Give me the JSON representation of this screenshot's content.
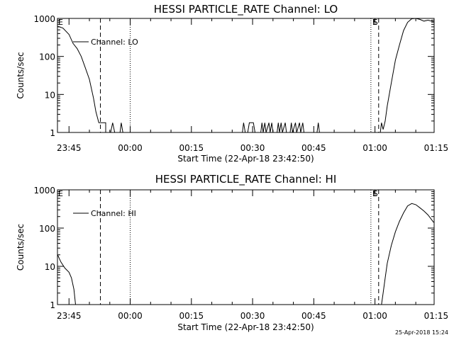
{
  "footer_timestamp": "25-Apr-2018 15:24",
  "chart_data": [
    {
      "type": "line",
      "title": "HESSI PARTICLE_RATE Channel: LO",
      "xlabel": "Start Time (22-Apr-18 23:42:50)",
      "ylabel": "Counts/sec",
      "yscale": "log",
      "ylim": [
        1,
        1000
      ],
      "xlim_minutes": [
        -2.83,
        89.5
      ],
      "x_ticks": [
        {
          "label": "23:45",
          "min": 0
        },
        {
          "label": "00:00",
          "min": 15
        },
        {
          "label": "00:15",
          "min": 30
        },
        {
          "label": "00:30",
          "min": 45
        },
        {
          "label": "00:45",
          "min": 60
        },
        {
          "label": "01:00",
          "min": 75
        },
        {
          "label": "01:15",
          "min": 90
        }
      ],
      "y_ticks": [
        {
          "label": "1",
          "v": 1
        },
        {
          "label": "10",
          "v": 10
        },
        {
          "label": "100",
          "v": 100
        },
        {
          "label": "1000",
          "v": 1000
        }
      ],
      "legend": "top-left",
      "series": [
        {
          "name": "Channel: LO",
          "points": [
            [
              -2.8,
              620
            ],
            [
              -1.5,
              560
            ],
            [
              0,
              380
            ],
            [
              1,
              220
            ],
            [
              2,
              160
            ],
            [
              3,
              100
            ],
            [
              4,
              50
            ],
            [
              5,
              25
            ],
            [
              6,
              8
            ],
            [
              6.6,
              3.5
            ],
            [
              7.3,
              1.8
            ],
            [
              8.2,
              1.8
            ],
            [
              9,
              1.8
            ],
            [
              9,
              1
            ],
            [
              10.2,
              1
            ],
            [
              10.7,
              1.8
            ],
            [
              11.2,
              1
            ],
            [
              12.5,
              1
            ],
            [
              12.8,
              1.8
            ],
            [
              13.2,
              1
            ],
            [
              42.5,
              1
            ],
            [
              42.8,
              1.8
            ],
            [
              43.2,
              1
            ],
            [
              43.8,
              1
            ],
            [
              44.2,
              1.8
            ],
            [
              45.2,
              1.8
            ],
            [
              45.6,
              1
            ],
            [
              47,
              1
            ],
            [
              47.3,
              1.8
            ],
            [
              47.6,
              1
            ],
            [
              48,
              1.8
            ],
            [
              48.3,
              1
            ],
            [
              49,
              1.8
            ],
            [
              49.3,
              1
            ],
            [
              49.7,
              1.8
            ],
            [
              50,
              1
            ],
            [
              51,
              1
            ],
            [
              51.3,
              1.8
            ],
            [
              51.6,
              1
            ],
            [
              52,
              1.8
            ],
            [
              52.3,
              1
            ],
            [
              53,
              1.8
            ],
            [
              53.3,
              1
            ],
            [
              54.2,
              1
            ],
            [
              54.5,
              1.8
            ],
            [
              54.8,
              1
            ],
            [
              55.5,
              1.8
            ],
            [
              55.8,
              1
            ],
            [
              56.5,
              1.8
            ],
            [
              56.8,
              1
            ],
            [
              57.3,
              1.8
            ],
            [
              57.6,
              1
            ],
            [
              60.8,
              1
            ],
            [
              61.1,
              1.8
            ],
            [
              61.4,
              1
            ],
            [
              76.3,
              1
            ],
            [
              76.6,
              1.8
            ],
            [
              77,
              1.2
            ],
            [
              77.5,
              2
            ],
            [
              78,
              5
            ],
            [
              79,
              20
            ],
            [
              80,
              80
            ],
            [
              81,
              200
            ],
            [
              82,
              480
            ],
            [
              83,
              790
            ],
            [
              84,
              980
            ],
            [
              85,
              1000
            ],
            [
              86,
              940
            ],
            [
              87,
              850
            ],
            [
              88,
              900
            ],
            [
              89.4,
              820
            ]
          ]
        }
      ],
      "markers": [
        {
          "label": "E",
          "min": -2.6,
          "style": "none"
        },
        {
          "min": 7.7,
          "style": "dashed"
        },
        {
          "min": 15,
          "style": "dotted"
        },
        {
          "label": "E",
          "min": 74,
          "style": "dotted"
        },
        {
          "label": "S",
          "min": 75.9,
          "style": "dashed"
        },
        {
          "min": 89.5,
          "style": "dashdot"
        }
      ]
    },
    {
      "type": "line",
      "title": "HESSI PARTICLE_RATE Channel: HI",
      "xlabel": "Start Time (22-Apr-18 23:42:50)",
      "ylabel": "Counts/sec",
      "yscale": "log",
      "ylim": [
        1,
        1000
      ],
      "xlim_minutes": [
        -2.83,
        89.5
      ],
      "x_ticks": [
        {
          "label": "23:45",
          "min": 0
        },
        {
          "label": "00:00",
          "min": 15
        },
        {
          "label": "00:15",
          "min": 30
        },
        {
          "label": "00:30",
          "min": 45
        },
        {
          "label": "00:45",
          "min": 60
        },
        {
          "label": "01:00",
          "min": 75
        },
        {
          "label": "01:15",
          "min": 90
        }
      ],
      "y_ticks": [
        {
          "label": "1",
          "v": 1
        },
        {
          "label": "10",
          "v": 10
        },
        {
          "label": "100",
          "v": 100
        },
        {
          "label": "1000",
          "v": 1000
        }
      ],
      "legend": "top-left",
      "series": [
        {
          "name": "Channel: HI",
          "points": [
            [
              -2.8,
              20
            ],
            [
              -2,
              13
            ],
            [
              -1,
              9
            ],
            [
              0,
              7
            ],
            [
              0.6,
              5
            ],
            [
              1.2,
              2.5
            ],
            [
              1.6,
              1
            ],
            [
              76.6,
              1
            ],
            [
              77,
              2
            ],
            [
              77.5,
              5
            ],
            [
              78,
              12
            ],
            [
              79,
              35
            ],
            [
              80,
              80
            ],
            [
              81,
              150
            ],
            [
              82,
              250
            ],
            [
              83,
              380
            ],
            [
              84,
              440
            ],
            [
              85,
              410
            ],
            [
              86,
              340
            ],
            [
              87,
              280
            ],
            [
              88,
              220
            ],
            [
              89.4,
              140
            ]
          ]
        }
      ],
      "markers": [
        {
          "label": "E",
          "min": -2.6,
          "style": "none"
        },
        {
          "min": 7.7,
          "style": "dashed"
        },
        {
          "min": 15,
          "style": "dotted"
        },
        {
          "label": "E",
          "min": 74,
          "style": "dotted"
        },
        {
          "label": "S",
          "min": 75.9,
          "style": "dashed"
        },
        {
          "min": 89.5,
          "style": "dashdot"
        }
      ]
    }
  ]
}
